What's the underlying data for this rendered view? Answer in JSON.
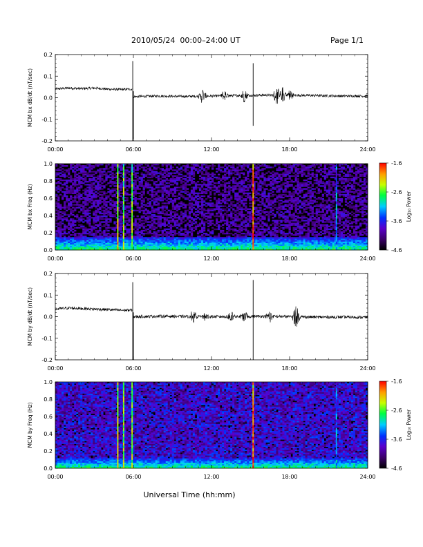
{
  "header": {
    "title": "2010/05/24  00:00–24:00 UT",
    "page": "Page 1/1"
  },
  "footer": {
    "xlabel": "Universal Time (hh:mm)"
  },
  "colorbar": {
    "label": "Log₁₀ Power",
    "ticks": [
      "-1.6",
      "-2.6",
      "-3.6",
      "-4.6"
    ],
    "tick_values": [
      -1.6,
      -2.6,
      -3.6,
      -4.6
    ],
    "range": [
      -4.6,
      -1.6
    ]
  },
  "chart_data": [
    {
      "type": "line",
      "ylabel": "MCM bx dB/dt (nT/sec)",
      "xlim": [
        0,
        24
      ],
      "ylim": [
        -0.2,
        0.2
      ],
      "x_ticks": [
        "00:00",
        "06:00",
        "12:00",
        "18:00",
        "24:00"
      ],
      "y_ticks": [
        "0.2",
        "0.1",
        "0.0",
        "-0.1",
        "-0.2"
      ],
      "y_tick_values": [
        0.2,
        0.1,
        0.0,
        -0.1,
        -0.2
      ],
      "segments": [
        {
          "x": [
            0,
            1,
            2,
            3,
            4,
            5,
            5.9
          ],
          "y": [
            0.04,
            0.045,
            0.042,
            0.045,
            0.04,
            0.038,
            0.04
          ],
          "noise": 0.006
        },
        {
          "x": [
            6.0,
            8,
            10,
            12,
            14,
            16,
            18,
            20,
            22,
            24
          ],
          "y": [
            0.005,
            0.008,
            0.006,
            0.008,
            0.01,
            0.012,
            0.012,
            0.01,
            0.008,
            0.008
          ],
          "noise": 0.006
        }
      ],
      "bursts": [
        {
          "x": 11.3,
          "amp": 0.04
        },
        {
          "x": 13.0,
          "amp": 0.03
        },
        {
          "x": 14.5,
          "amp": 0.035
        },
        {
          "x": 17.0,
          "amp": 0.045
        },
        {
          "x": 17.5,
          "amp": 0.04
        },
        {
          "x": 18.0,
          "amp": 0.035
        }
      ],
      "spikes": [
        {
          "x": 5.95,
          "y_min": -0.2,
          "y_max": 0.17
        },
        {
          "x": 6.0,
          "y_min": -0.19,
          "y_max": 0.03
        },
        {
          "x": 15.2,
          "y_min": -0.13,
          "y_max": 0.16
        }
      ]
    },
    {
      "type": "heatmap",
      "ylabel": "MCM bx Freq (Hz)",
      "xlim": [
        0,
        24
      ],
      "ylim": [
        0,
        1.0
      ],
      "x_ticks": [
        "00:00",
        "06:00",
        "12:00",
        "18:00",
        "24:00"
      ],
      "y_ticks": [
        "1.0",
        "0.8",
        "0.6",
        "0.4",
        "0.2",
        "0.0"
      ],
      "y_tick_values": [
        1.0,
        0.8,
        0.6,
        0.4,
        0.2,
        0.0
      ],
      "colorscale_range": [
        -4.6,
        -1.6
      ],
      "background_level": -4.6,
      "low_freq_band": {
        "max_hz": 0.15,
        "level": -3.0
      },
      "vertical_lines": [
        {
          "x": 4.8,
          "level": -2.2
        },
        {
          "x": 5.25,
          "level": -2.4
        },
        {
          "x": 5.9,
          "level": -2.4
        },
        {
          "x": 15.2,
          "level": -1.8
        },
        {
          "x": 21.6,
          "level": -3.2
        }
      ]
    },
    {
      "type": "line",
      "ylabel": "MCM by dB/dt (nT/sec)",
      "xlim": [
        0,
        24
      ],
      "ylim": [
        -0.2,
        0.2
      ],
      "x_ticks": [
        "00:00",
        "06:00",
        "12:00",
        "18:00",
        "24:00"
      ],
      "y_ticks": [
        "0.2",
        "0.1",
        "0.0",
        "-0.1",
        "-0.2"
      ],
      "y_tick_values": [
        0.2,
        0.1,
        0.0,
        -0.1,
        -0.2
      ],
      "segments": [
        {
          "x": [
            0,
            1,
            2,
            3,
            4,
            5,
            5.9
          ],
          "y": [
            0.035,
            0.04,
            0.038,
            0.035,
            0.033,
            0.03,
            0.03
          ],
          "noise": 0.007
        },
        {
          "x": [
            6.0,
            8,
            10,
            12,
            14,
            16,
            18,
            20,
            22,
            24
          ],
          "y": [
            0.0,
            0.002,
            0.001,
            0.0,
            0.0,
            0.002,
            0.0,
            -0.002,
            -0.002,
            -0.003
          ],
          "noise": 0.007
        }
      ],
      "bursts": [
        {
          "x": 10.6,
          "amp": 0.03
        },
        {
          "x": 11.5,
          "amp": 0.025
        },
        {
          "x": 13.5,
          "amp": 0.03
        },
        {
          "x": 14.5,
          "amp": 0.03
        },
        {
          "x": 16.5,
          "amp": 0.03
        },
        {
          "x": 18.5,
          "amp": 0.06
        }
      ],
      "spikes": [
        {
          "x": 5.95,
          "y_min": -0.2,
          "y_max": 0.16
        },
        {
          "x": 6.0,
          "y_min": -0.2,
          "y_max": 0.02
        },
        {
          "x": 15.2,
          "y_min": -0.2,
          "y_max": 0.17
        }
      ]
    },
    {
      "type": "heatmap",
      "ylabel": "MCM by Freq (Hz)",
      "xlim": [
        0,
        24
      ],
      "ylim": [
        0,
        1.0
      ],
      "x_ticks": [
        "00:00",
        "06:00",
        "12:00",
        "18:00",
        "24:00"
      ],
      "y_ticks": [
        "1.0",
        "0.8",
        "0.6",
        "0.4",
        "0.2",
        "0.0"
      ],
      "y_tick_values": [
        1.0,
        0.8,
        0.6,
        0.4,
        0.2,
        0.0
      ],
      "colorscale_range": [
        -4.6,
        -1.6
      ],
      "background_level": -4.3,
      "low_freq_band": {
        "max_hz": 0.12,
        "level": -3.0
      },
      "vertical_lines": [
        {
          "x": 4.8,
          "level": -2.2
        },
        {
          "x": 5.25,
          "level": -2.4
        },
        {
          "x": 5.9,
          "level": -2.4
        },
        {
          "x": 15.2,
          "level": -1.8
        },
        {
          "x": 21.6,
          "level": -3.2
        }
      ]
    }
  ]
}
